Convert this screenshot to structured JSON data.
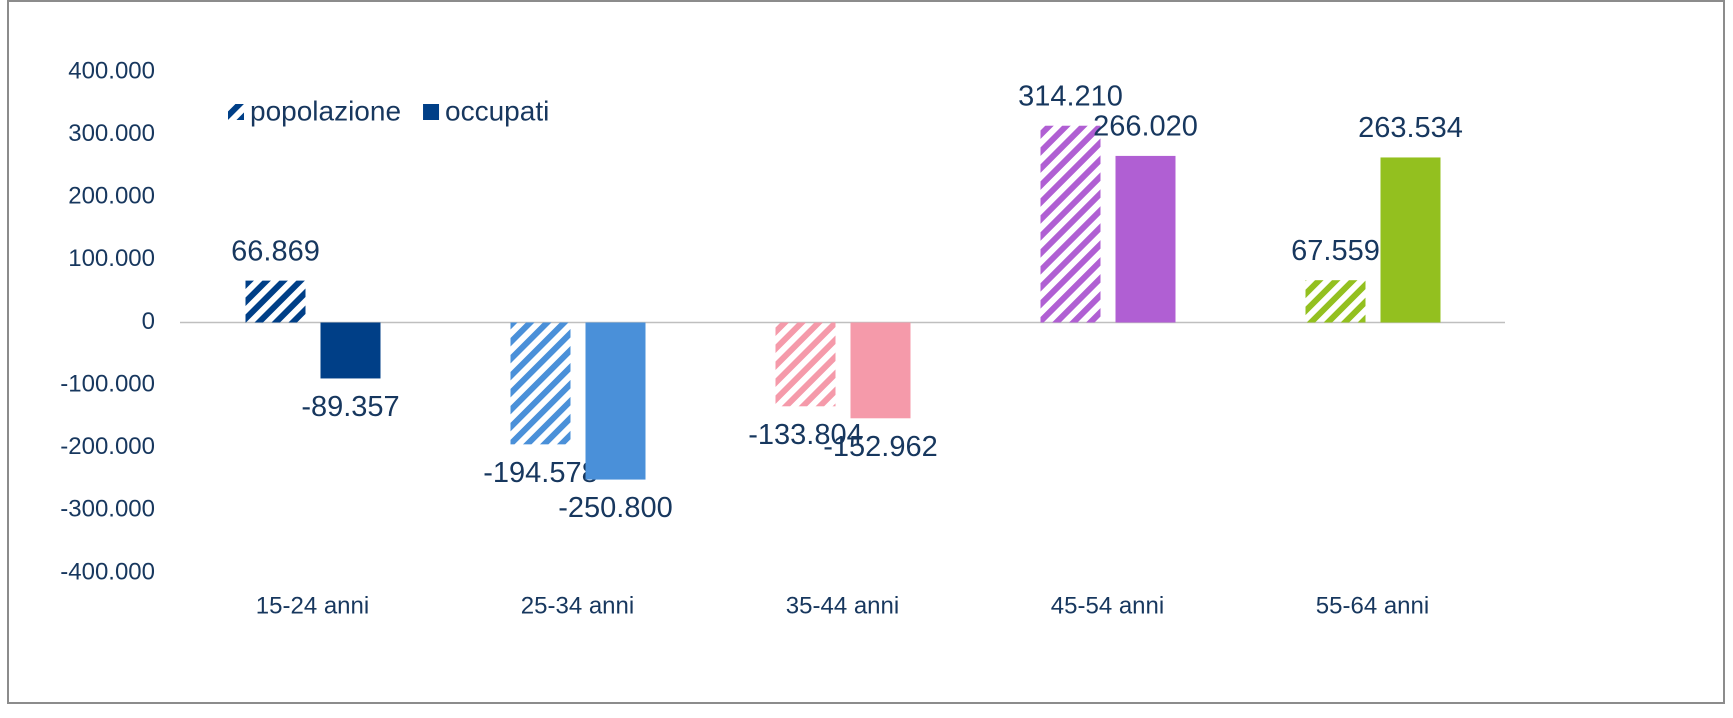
{
  "chart_data": {
    "type": "bar",
    "categories": [
      "15-24 anni",
      "25-34 anni",
      "35-44 anni",
      "45-54 anni",
      "55-64 anni"
    ],
    "colors": [
      "#003f87",
      "#4a90d9",
      "#f59aaa",
      "#b05fd3",
      "#93c01f"
    ],
    "series": [
      {
        "name": "popolazione",
        "color": "#003f87",
        "hatch": true,
        "values": [
          66869,
          -194578,
          -133804,
          314210,
          67559
        ],
        "value_labels": [
          "66.869",
          "-194.578",
          "-133.804",
          "314.210",
          "67.559"
        ]
      },
      {
        "name": "occupati",
        "color": "#003f87",
        "hatch": false,
        "values": [
          -89357,
          -250800,
          -152962,
          266020,
          263534
        ],
        "value_labels": [
          "-89.357",
          "-250.800",
          "-152.962",
          "266.020",
          "263.534"
        ]
      }
    ],
    "ylim": [
      -400000,
      400000
    ],
    "yticks": [
      {
        "value": -400000,
        "label": "-400.000"
      },
      {
        "value": -300000,
        "label": "-300.000"
      },
      {
        "value": -200000,
        "label": "-200.000"
      },
      {
        "value": -100000,
        "label": "-100.000"
      },
      0,
      {
        "value": 100000,
        "label": "100.000"
      },
      {
        "value": 200000,
        "label": "200.000"
      },
      {
        "value": 300000,
        "label": "300.000"
      },
      {
        "value": 400000,
        "label": "400.000"
      }
    ],
    "grid": false,
    "legend": "top-left"
  }
}
